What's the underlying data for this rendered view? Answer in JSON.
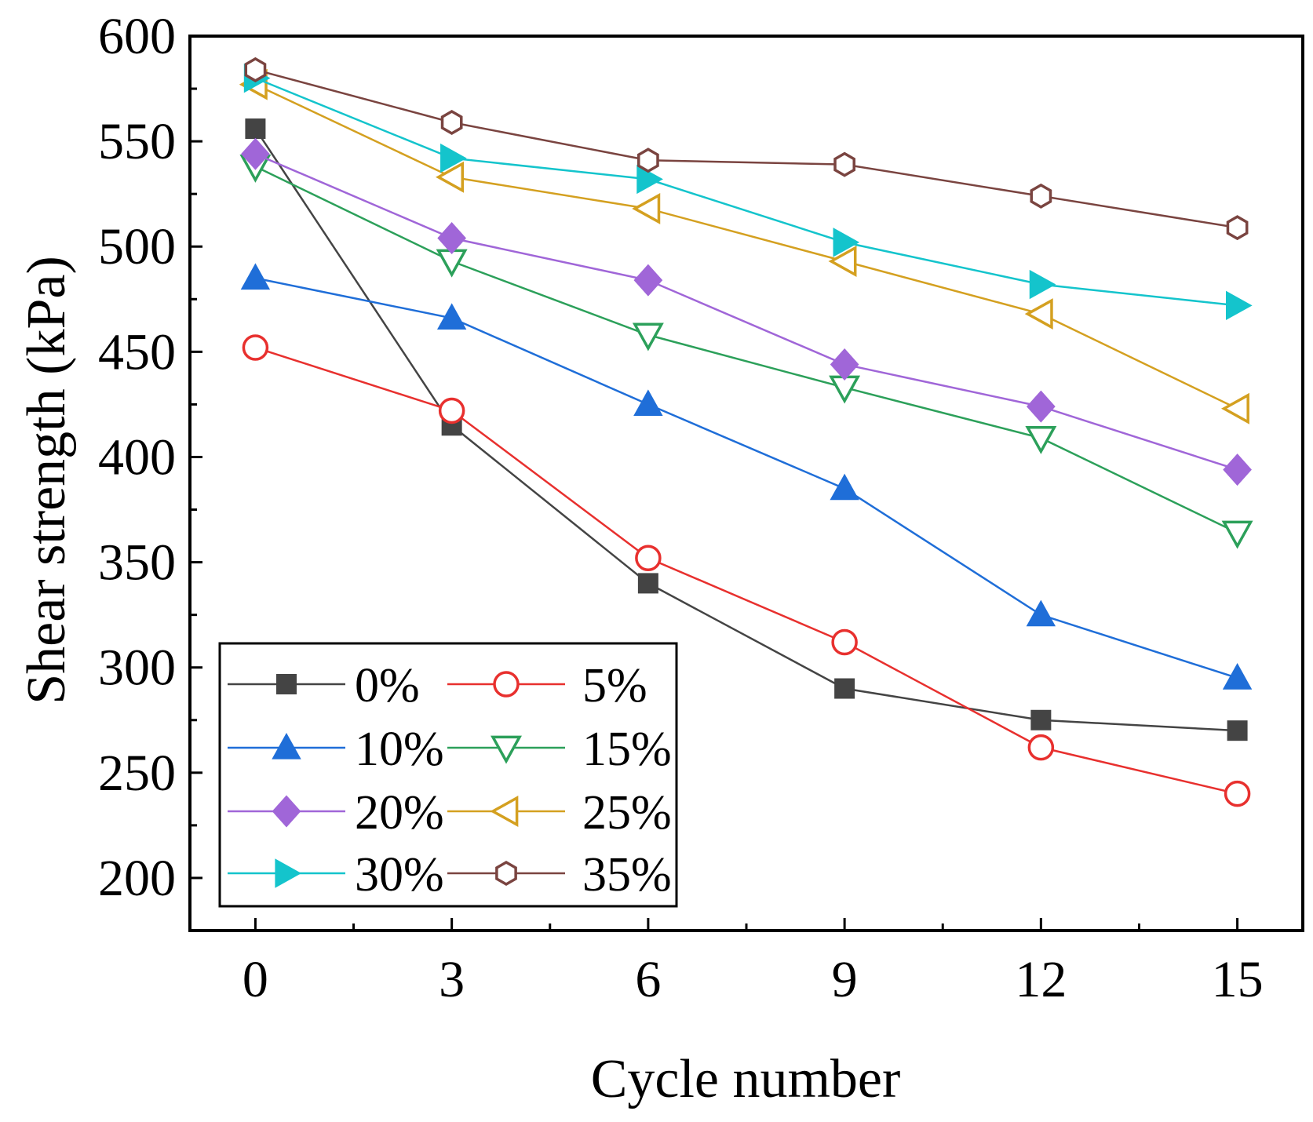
{
  "chart_data": {
    "type": "line",
    "title": "",
    "xlabel": "Cycle number",
    "ylabel": "Shear strength (kPa)",
    "x": [
      0,
      3,
      6,
      9,
      12,
      15
    ],
    "x_ticks": [
      "0",
      "3",
      "6",
      "9",
      "12",
      "15"
    ],
    "y_ticks": [
      "200",
      "250",
      "300",
      "350",
      "400",
      "450",
      "500",
      "550",
      "600"
    ],
    "xlim": [
      -1,
      16
    ],
    "ylim": [
      175,
      600
    ],
    "grid": false,
    "legend_position": "bottom-left",
    "series": [
      {
        "name": "0%",
        "color": "#444444",
        "marker": "square-filled",
        "values": [
          556,
          415,
          340,
          290,
          275,
          270
        ]
      },
      {
        "name": "5%",
        "color": "#e8302e",
        "marker": "circle-open",
        "values": [
          452,
          422,
          352,
          312,
          262,
          240
        ]
      },
      {
        "name": "10%",
        "color": "#1f6ed8",
        "marker": "triangle-up-filled",
        "values": [
          485,
          466,
          425,
          385,
          325,
          295
        ]
      },
      {
        "name": "15%",
        "color": "#2ca05a",
        "marker": "triangle-down-open",
        "values": [
          538,
          493,
          458,
          433,
          409,
          364
        ]
      },
      {
        "name": "20%",
        "color": "#a066d8",
        "marker": "diamond-filled",
        "values": [
          544,
          504,
          484,
          444,
          424,
          394
        ]
      },
      {
        "name": "25%",
        "color": "#d4a020",
        "marker": "triangle-left-open",
        "values": [
          577,
          533,
          518,
          493,
          468,
          423
        ]
      },
      {
        "name": "30%",
        "color": "#14c4cc",
        "marker": "triangle-right-filled",
        "values": [
          580,
          542,
          532,
          502,
          482,
          472
        ]
      },
      {
        "name": "35%",
        "color": "#7a4440",
        "marker": "hexagon-open",
        "values": [
          584,
          559,
          541,
          539,
          524,
          509
        ]
      }
    ]
  }
}
